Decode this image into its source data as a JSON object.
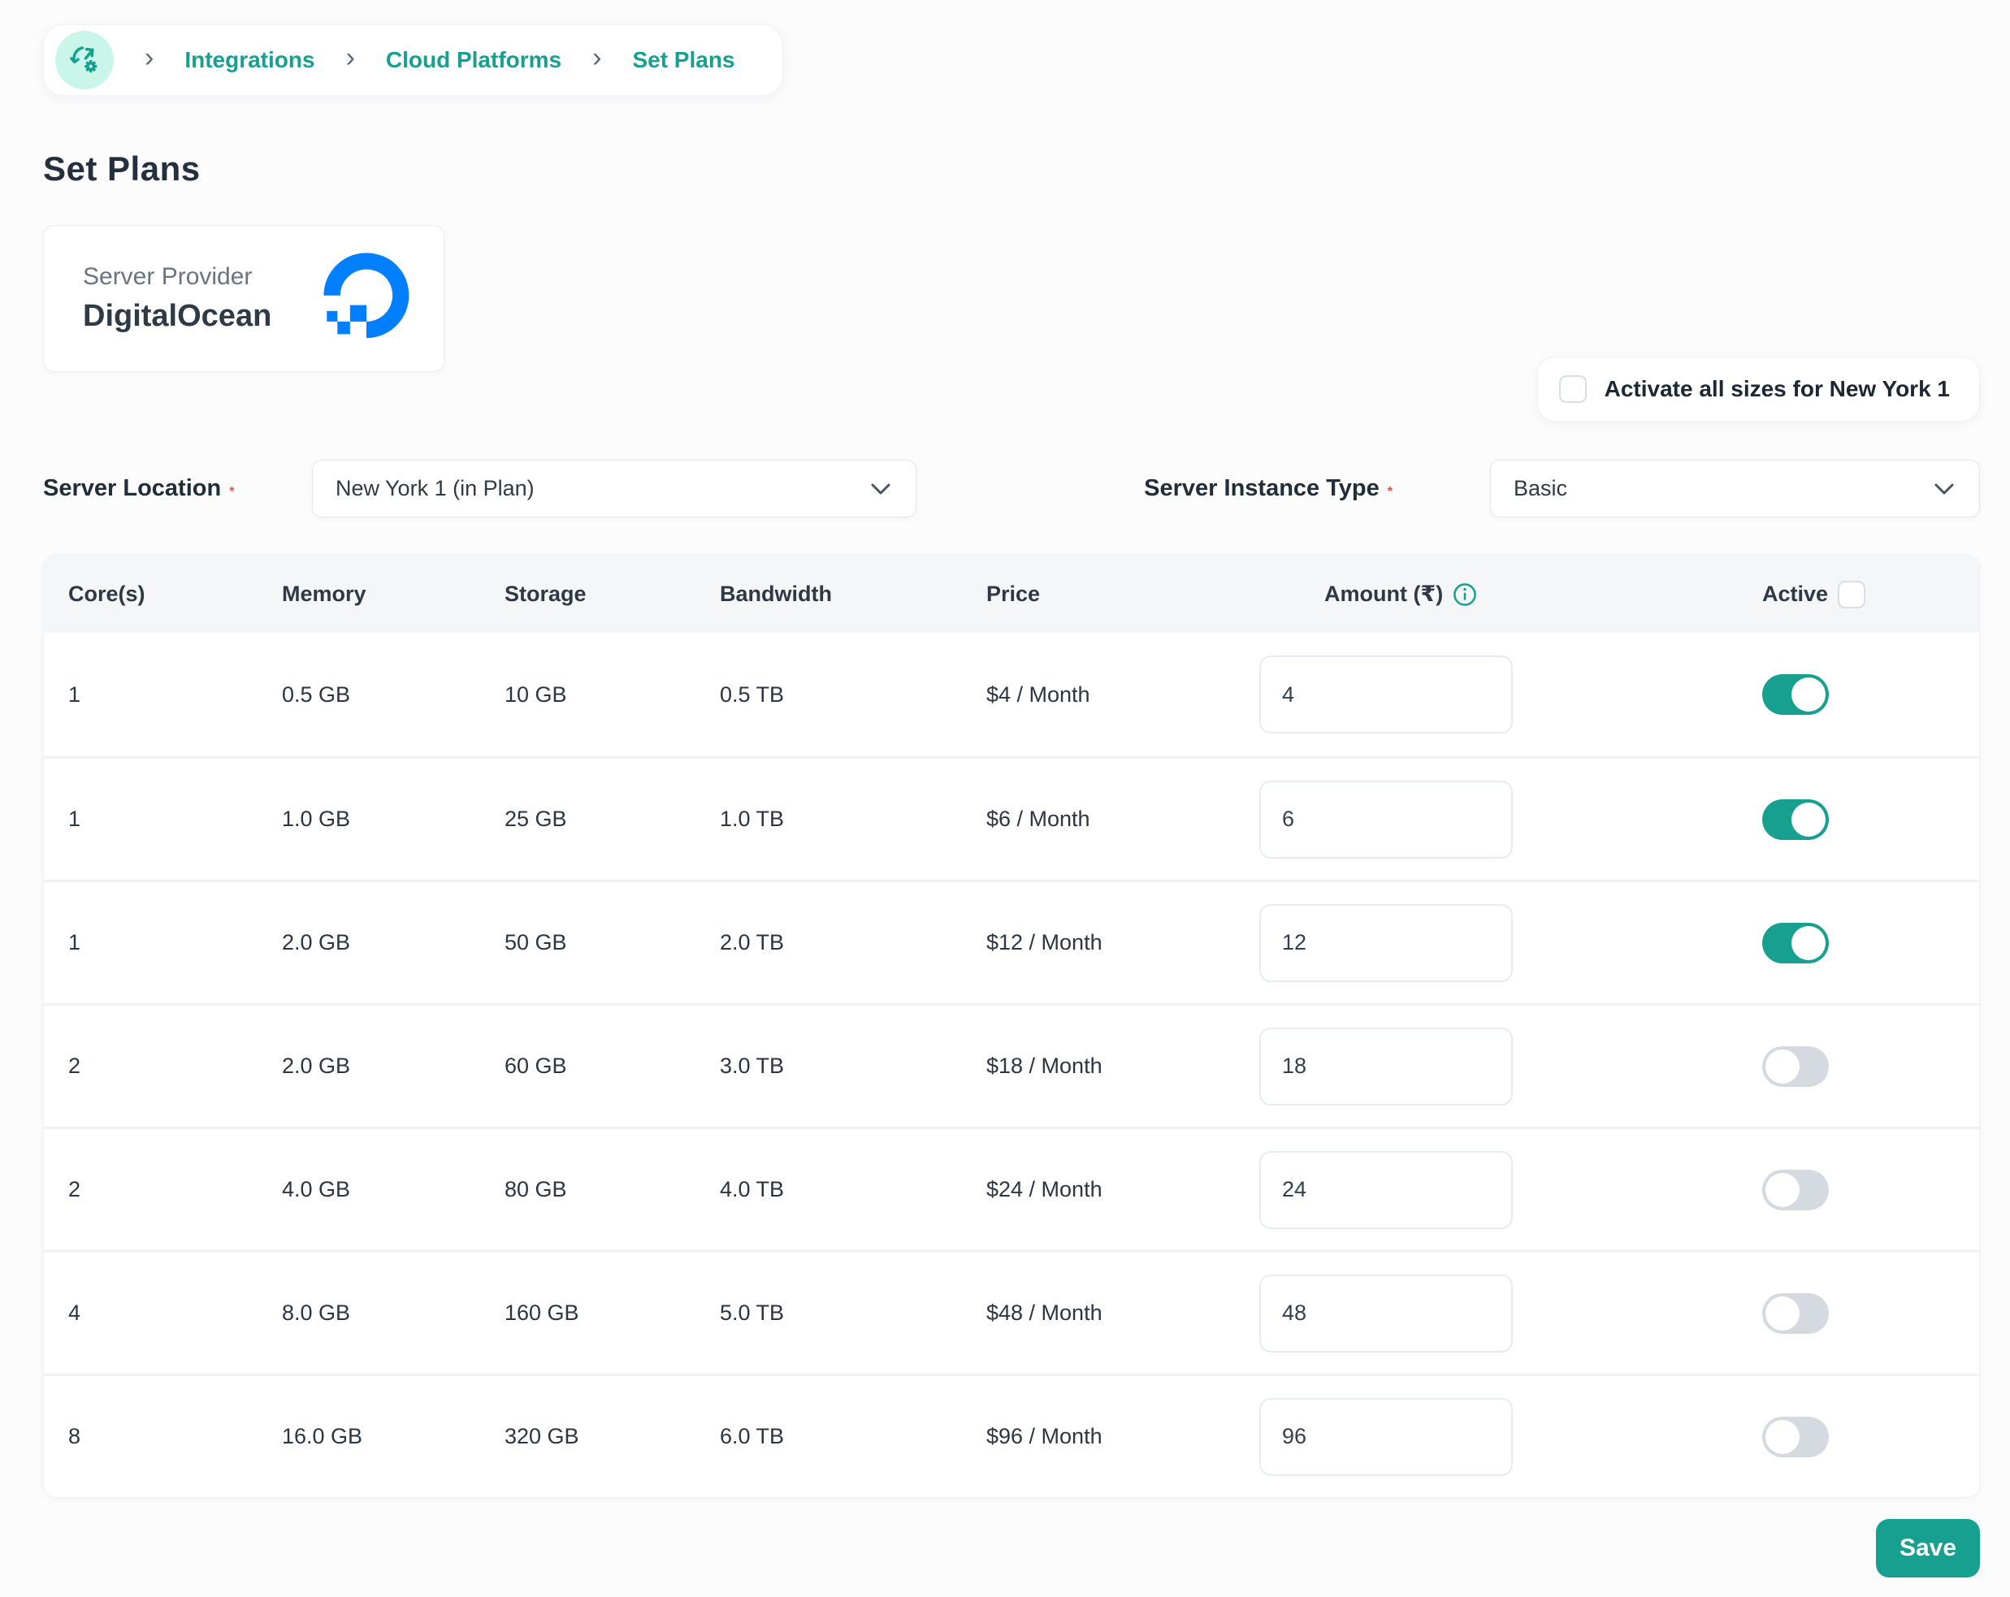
{
  "colors": {
    "accent": "#17a08f",
    "mint": "#c9f6e9",
    "do_blue": "#0080ff",
    "toggle_off": "#d5dae1",
    "required": "#f04a41"
  },
  "breadcrumb": {
    "items": [
      "Integrations",
      "Cloud Platforms",
      "Set Plans"
    ]
  },
  "page": {
    "title": "Set Plans"
  },
  "provider": {
    "label": "Server Provider",
    "name": "DigitalOcean"
  },
  "activate_all": {
    "label": "Activate all sizes for New York 1",
    "checked": false
  },
  "filters": {
    "required_mark": "*",
    "location": {
      "label": "Server Location",
      "value": "New York 1 (in Plan)"
    },
    "instance_type": {
      "label": "Server Instance Type",
      "value": "Basic"
    }
  },
  "table": {
    "headers": [
      "Core(s)",
      "Memory",
      "Storage",
      "Bandwidth",
      "Price",
      "Amount (₹)",
      "Active"
    ],
    "header_active_checkbox_checked": false,
    "rows": [
      {
        "cores": "1",
        "memory": "0.5 GB",
        "storage": "10 GB",
        "bandwidth": "0.5 TB",
        "price": "$4 / Month",
        "amount": "4",
        "active": true
      },
      {
        "cores": "1",
        "memory": "1.0 GB",
        "storage": "25 GB",
        "bandwidth": "1.0 TB",
        "price": "$6 / Month",
        "amount": "6",
        "active": true
      },
      {
        "cores": "1",
        "memory": "2.0 GB",
        "storage": "50 GB",
        "bandwidth": "2.0 TB",
        "price": "$12 / Month",
        "amount": "12",
        "active": true
      },
      {
        "cores": "2",
        "memory": "2.0 GB",
        "storage": "60 GB",
        "bandwidth": "3.0 TB",
        "price": "$18 / Month",
        "amount": "18",
        "active": false
      },
      {
        "cores": "2",
        "memory": "4.0 GB",
        "storage": "80 GB",
        "bandwidth": "4.0 TB",
        "price": "$24 / Month",
        "amount": "24",
        "active": false
      },
      {
        "cores": "4",
        "memory": "8.0 GB",
        "storage": "160 GB",
        "bandwidth": "5.0 TB",
        "price": "$48 / Month",
        "amount": "48",
        "active": false
      },
      {
        "cores": "8",
        "memory": "16.0 GB",
        "storage": "320 GB",
        "bandwidth": "6.0 TB",
        "price": "$96 / Month",
        "amount": "96",
        "active": false
      }
    ]
  },
  "footer": {
    "save_label": "Save"
  }
}
